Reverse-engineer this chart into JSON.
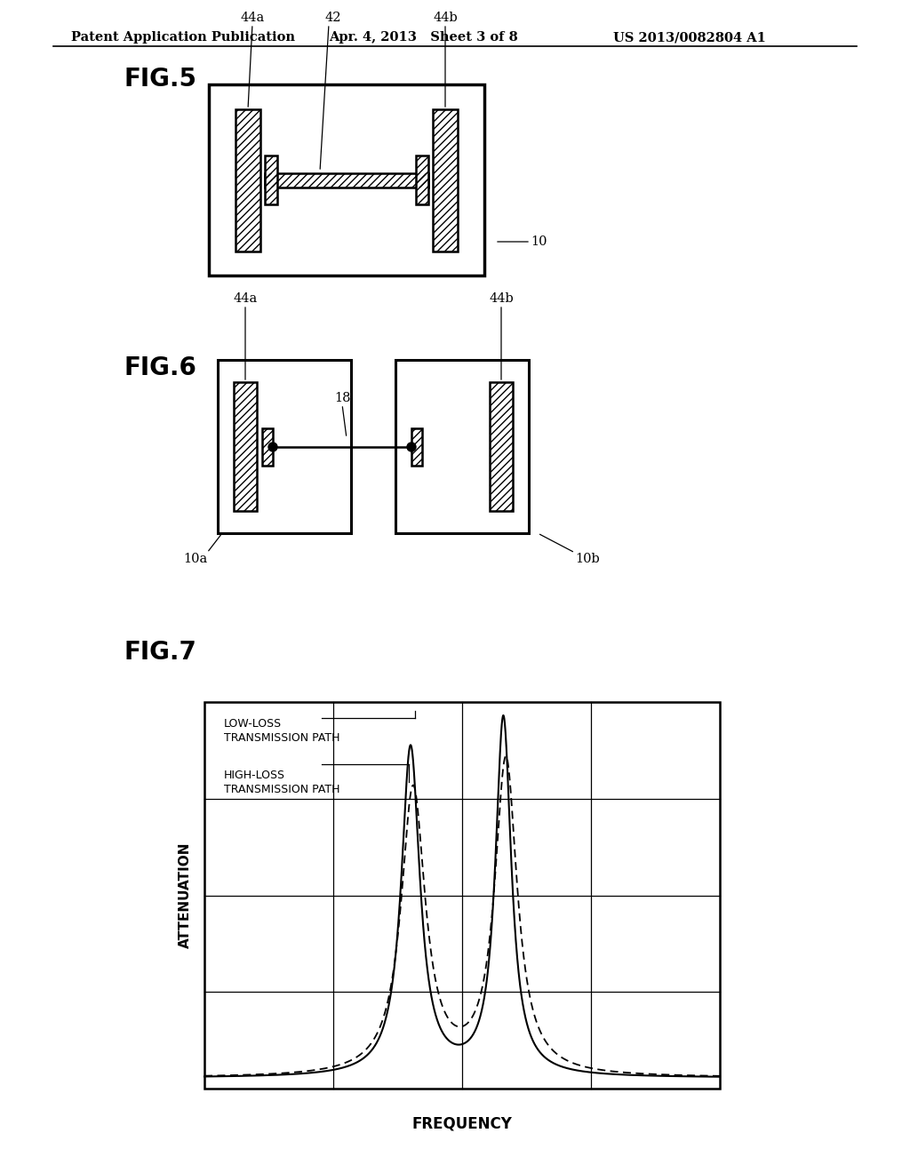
{
  "bg_color": "#ffffff",
  "header_left": "Patent Application Publication",
  "header_mid": "Apr. 4, 2013   Sheet 3 of 8",
  "header_right": "US 2013/0082804 A1",
  "fig5_label": "FIG.5",
  "fig6_label": "FIG.6",
  "fig7_label": "FIG.7",
  "fig7_xlabel": "FREQUENCY",
  "fig7_ylabel": "ATTENUATION",
  "fig7_label1": "LOW-LOSS\nTRANSMISSION PATH",
  "fig7_label2": "HIGH-LOSS\nTRANSMISSION PATH"
}
